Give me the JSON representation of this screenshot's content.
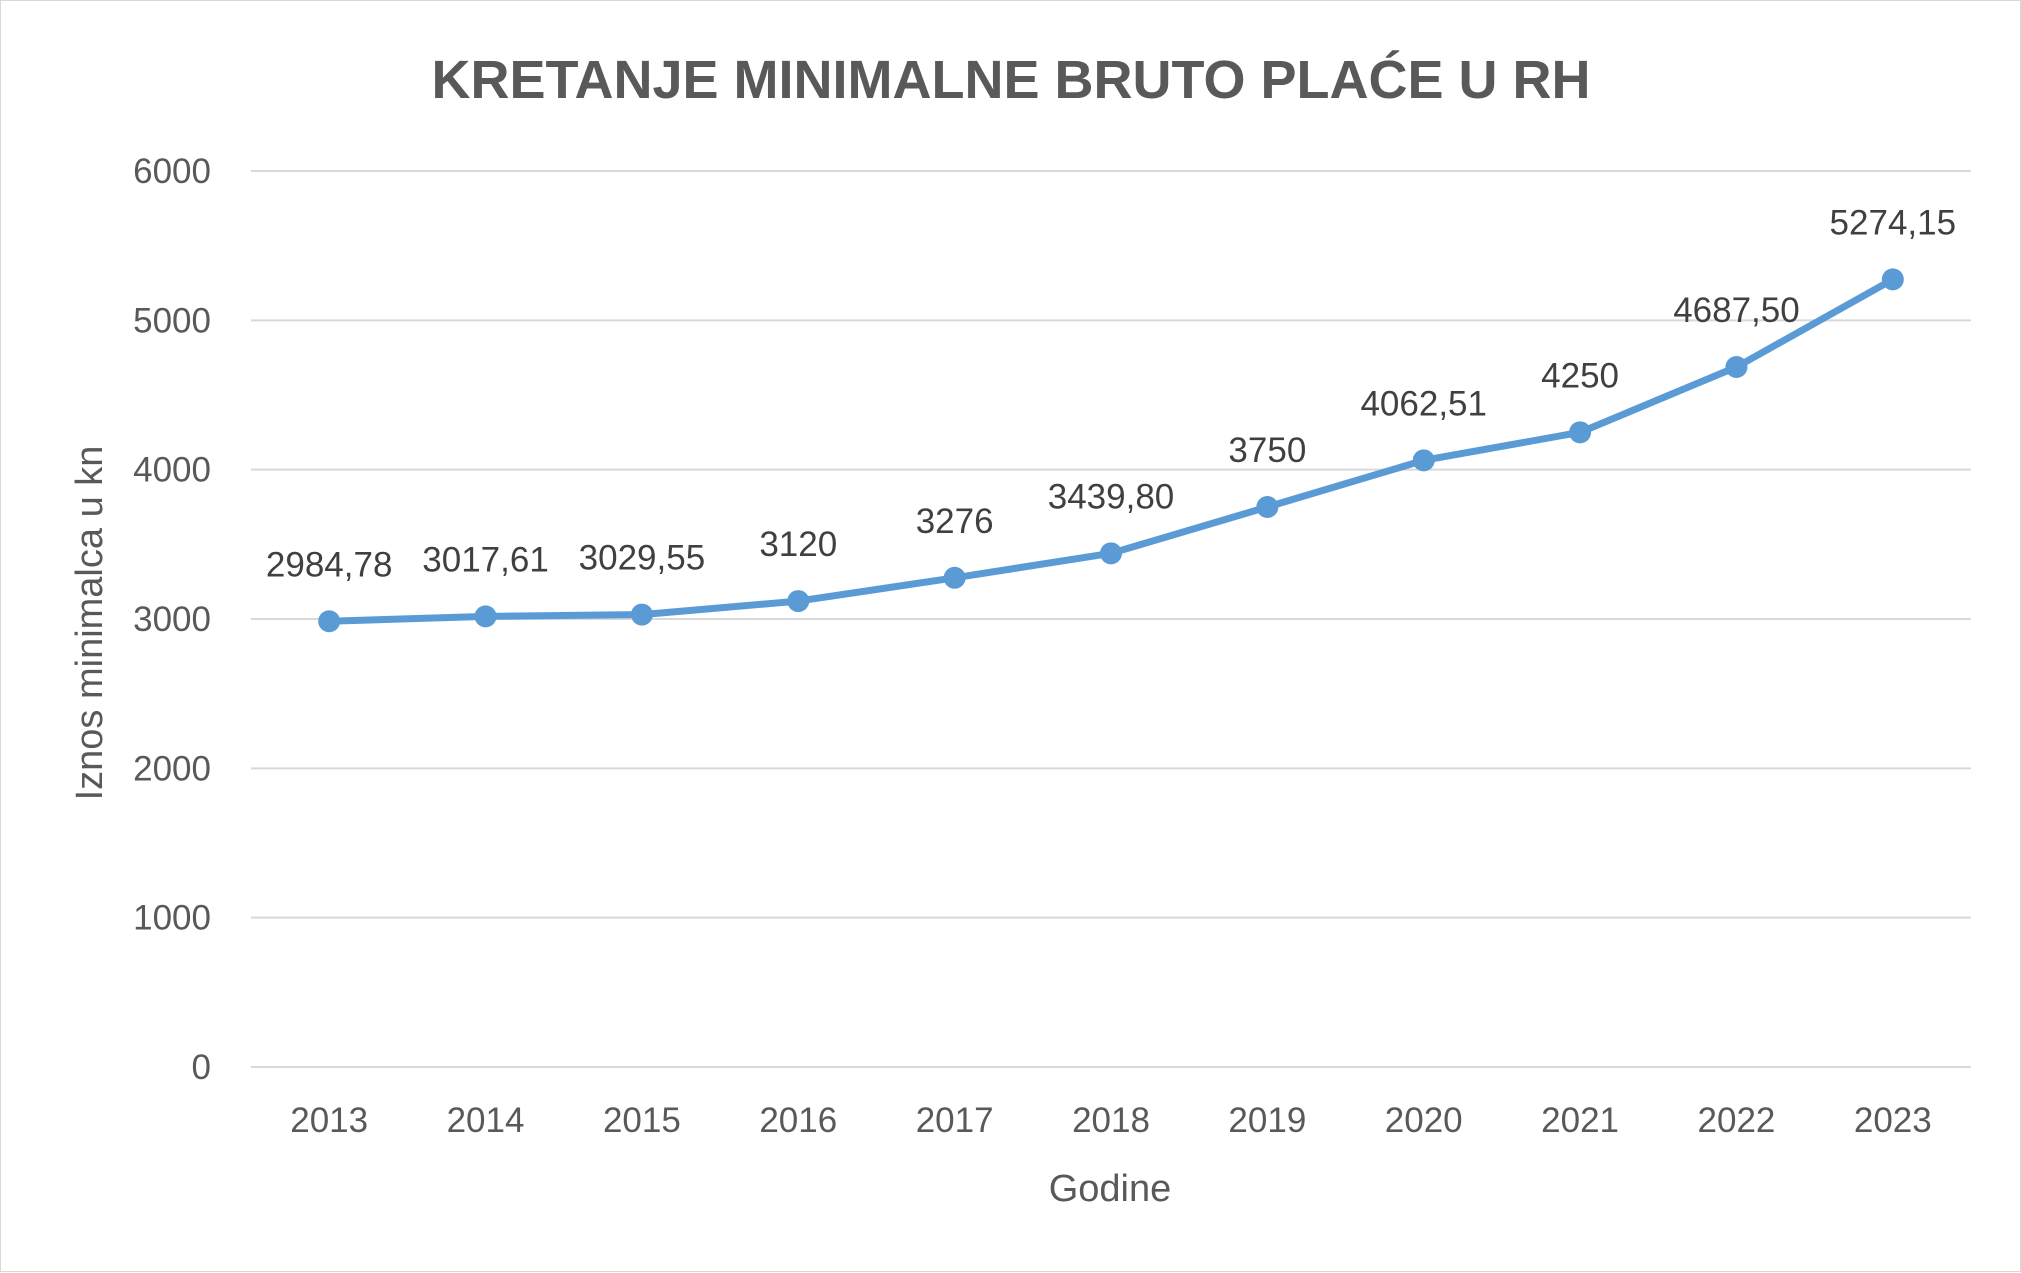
{
  "chart_data": {
    "type": "line",
    "title": "KRETANJE MINIMALNE BRUTO PLAĆE U RH",
    "xlabel": "Godine",
    "ylabel": "Iznos minimalca u kn",
    "categories": [
      "2013",
      "2014",
      "2015",
      "2016",
      "2017",
      "2018",
      "2019",
      "2020",
      "2021",
      "2022",
      "2023"
    ],
    "series": [
      {
        "values": [
          2984.78,
          3017.61,
          3029.55,
          3120,
          3276,
          3439.8,
          3750,
          4062.51,
          4250,
          4687.5,
          5274.15
        ],
        "labels": [
          "2984,78",
          "3017,61",
          "3029,55",
          "3120",
          "3276",
          "3439,80",
          "3750",
          "4062,51",
          "4250",
          "4687,50",
          "5274,15"
        ],
        "color": "#5b9bd5"
      }
    ],
    "yticks": [
      "0",
      "1000",
      "2000",
      "3000",
      "4000",
      "5000",
      "6000"
    ],
    "ylim": [
      0,
      6000
    ],
    "grid": true,
    "legend": "none",
    "gridColor": "#d9d9d9"
  }
}
